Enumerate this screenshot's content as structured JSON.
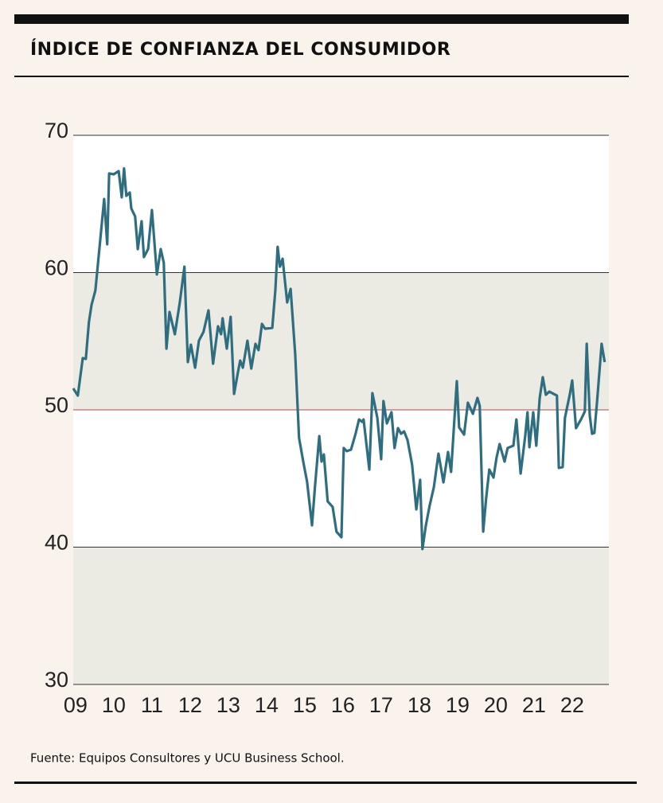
{
  "chart_data": {
    "type": "line",
    "title": "ÍNDICE DE CONFIANZA DEL CONSUMIDOR",
    "source": "Fuente: Equipos Consultores y UCU Business School.",
    "x": [
      8.94,
      9.06,
      9.19,
      9.27,
      9.35,
      9.42,
      9.52,
      9.65,
      9.75,
      9.83,
      9.88,
      10.0,
      10.13,
      10.21,
      10.27,
      10.33,
      10.42,
      10.46,
      10.56,
      10.63,
      10.73,
      10.79,
      10.9,
      11.0,
      11.13,
      11.23,
      11.31,
      11.38,
      11.46,
      11.6,
      11.73,
      11.85,
      11.94,
      12.02,
      12.13,
      12.23,
      12.35,
      12.48,
      12.6,
      12.73,
      12.81,
      12.85,
      12.96,
      13.06,
      13.15,
      13.25,
      13.31,
      13.38,
      13.5,
      13.6,
      13.71,
      13.79,
      13.88,
      13.96,
      14.15,
      14.23,
      14.29,
      14.35,
      14.42,
      14.54,
      14.63,
      14.75,
      14.85,
      14.96,
      15.06,
      15.19,
      15.27,
      15.38,
      15.44,
      15.5,
      15.6,
      15.73,
      15.83,
      15.96,
      16.02,
      16.1,
      16.21,
      16.33,
      16.42,
      16.5,
      16.54,
      16.69,
      16.77,
      16.9,
      17.0,
      17.06,
      17.15,
      17.27,
      17.35,
      17.44,
      17.52,
      17.6,
      17.69,
      17.81,
      17.92,
      18.02,
      18.08,
      18.17,
      18.27,
      18.38,
      18.5,
      18.63,
      18.75,
      18.83,
      18.98,
      19.04,
      19.17,
      19.27,
      19.4,
      19.52,
      19.58,
      19.67,
      19.75,
      19.83,
      19.94,
      20.02,
      20.1,
      20.23,
      20.31,
      20.46,
      20.54,
      20.65,
      20.77,
      20.83,
      20.88,
      20.98,
      21.06,
      21.15,
      21.23,
      21.31,
      21.4,
      21.6,
      21.65,
      21.75,
      21.81,
      21.94,
      22.0,
      22.1,
      22.23,
      22.33,
      22.38,
      22.46,
      22.52,
      22.58,
      22.65,
      22.77,
      22.85
    ],
    "series": [
      {
        "color": "#2e6e80",
        "values": [
          51.57,
          51.04,
          53.77,
          53.71,
          56.38,
          57.65,
          58.7,
          62.46,
          65.36,
          62.06,
          67.22,
          67.16,
          67.39,
          65.48,
          67.59,
          65.59,
          65.83,
          64.67,
          64.09,
          61.71,
          63.74,
          61.13,
          61.71,
          64.55,
          59.86,
          61.71,
          60.72,
          54.46,
          57.13,
          55.51,
          57.83,
          60.43,
          53.48,
          54.75,
          53.07,
          55.04,
          55.68,
          57.25,
          53.36,
          56.09,
          55.51,
          56.67,
          54.46,
          56.78,
          51.16,
          52.72,
          53.59,
          53.07,
          55.04,
          53.01,
          54.81,
          54.35,
          56.26,
          55.91,
          55.97,
          58.7,
          61.88,
          60.43,
          61.01,
          57.83,
          58.81,
          54.06,
          47.97,
          46.23,
          44.78,
          41.59,
          44.49,
          48.09,
          46.23,
          46.75,
          43.33,
          42.93,
          41.13,
          40.72,
          47.22,
          46.99,
          47.1,
          48.26,
          49.3,
          49.13,
          49.3,
          45.65,
          51.22,
          49.42,
          46.41,
          50.64,
          49.01,
          49.83,
          47.22,
          48.67,
          48.26,
          48.43,
          47.8,
          46.0,
          42.75,
          44.9,
          39.86,
          41.59,
          43.04,
          44.38,
          46.81,
          44.72,
          46.93,
          45.48,
          52.09,
          48.72,
          48.2,
          50.52,
          49.71,
          50.87,
          50.29,
          41.13,
          43.62,
          45.65,
          45.07,
          46.52,
          47.51,
          46.23,
          47.22,
          47.39,
          49.3,
          45.36,
          48.09,
          49.83,
          47.28,
          49.83,
          47.39,
          50.87,
          52.38,
          51.1,
          51.33,
          51.04,
          45.77,
          45.83,
          49.42,
          51.16,
          52.14,
          48.67,
          49.3,
          49.88,
          54.81,
          49.59,
          48.26,
          48.32,
          50.58,
          54.81,
          53.48
        ]
      }
    ],
    "xlim": [
      8.94,
      22.96
    ],
    "xticks": [
      {
        "value": 9,
        "label": "09"
      },
      10,
      11,
      12,
      13,
      14,
      15,
      16,
      17,
      18,
      19,
      20,
      21,
      22
    ],
    "ylim": [
      30,
      70
    ],
    "yticks": [
      30,
      40,
      50,
      60,
      70
    ],
    "reference_line": 50,
    "grid": true
  }
}
